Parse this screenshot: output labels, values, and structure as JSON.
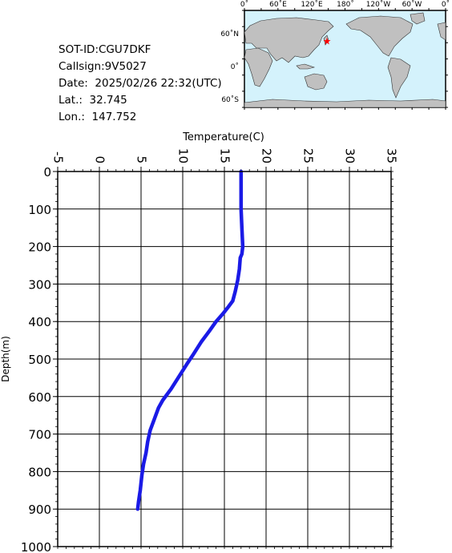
{
  "info": {
    "sot_id": "SOT-ID:CGU7DKF",
    "callsign": "Callsign:9V5027",
    "date": "Date:  2025/02/26 22:32(UTC)",
    "lat": "Lat.:  32.745",
    "lon": "Lon.:  147.752"
  },
  "map": {
    "lon_labels": [
      "0˚",
      "60˚E",
      "120˚E",
      "180˚",
      "120˚W",
      "60˚W",
      "0˚"
    ],
    "lat_labels": [
      "60˚N",
      "0˚",
      "60˚S"
    ],
    "marker": {
      "lat": 32.745,
      "lon": 147.752,
      "color": "#ff0000"
    },
    "ocean_color": "#d4f2fc",
    "land_color": "#c0c0c0"
  },
  "chart_data": {
    "type": "line",
    "xlabel": "Temperature(C)",
    "ylabel": "Depth(m)",
    "xlim": [
      -5,
      35
    ],
    "ylim": [
      1000,
      0
    ],
    "x_ticks": [
      "-5",
      "0",
      "5",
      "10",
      "15",
      "20",
      "25",
      "30",
      "35"
    ],
    "y_ticks": [
      "0",
      "100",
      "200",
      "300",
      "400",
      "500",
      "600",
      "700",
      "800",
      "900",
      "1000"
    ],
    "grid": true,
    "series": [
      {
        "color": "#1a1ae6",
        "points": [
          [
            17.0,
            0
          ],
          [
            17.0,
            50
          ],
          [
            17.0,
            100
          ],
          [
            17.1,
            150
          ],
          [
            17.2,
            200
          ],
          [
            17.1,
            220
          ],
          [
            16.9,
            230
          ],
          [
            16.8,
            260
          ],
          [
            16.6,
            290
          ],
          [
            16.3,
            320
          ],
          [
            16.0,
            345
          ],
          [
            15.5,
            360
          ],
          [
            14.8,
            380
          ],
          [
            14.0,
            400
          ],
          [
            13.2,
            425
          ],
          [
            12.2,
            455
          ],
          [
            11.2,
            490
          ],
          [
            10.6,
            510
          ],
          [
            9.6,
            545
          ],
          [
            8.6,
            580
          ],
          [
            7.6,
            610
          ],
          [
            7.1,
            630
          ],
          [
            6.6,
            660
          ],
          [
            6.1,
            690
          ],
          [
            5.8,
            720
          ],
          [
            5.6,
            750
          ],
          [
            5.3,
            780
          ],
          [
            5.1,
            810
          ],
          [
            4.9,
            850
          ],
          [
            4.7,
            880
          ],
          [
            4.6,
            900
          ]
        ]
      }
    ]
  }
}
